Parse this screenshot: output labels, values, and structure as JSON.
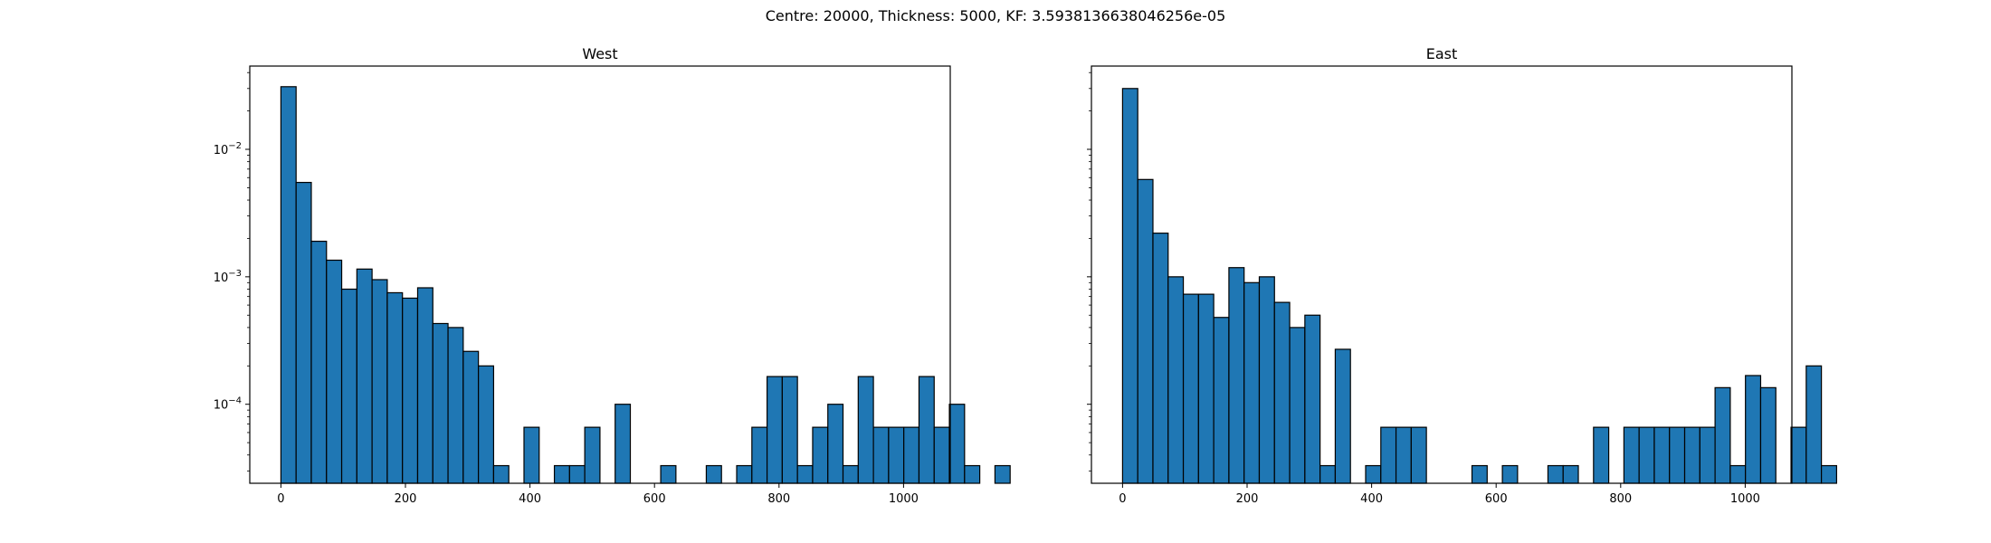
{
  "figure": {
    "suptitle": "Centre: 20000, Thickness: 5000, KF: 3.5938136638046256e-05"
  },
  "style": {
    "bar_color": "#1f77b4",
    "edge_color": "#000000"
  },
  "chart_data": [
    {
      "type": "bar",
      "title": "West",
      "xlabel": "",
      "ylabel": "",
      "bin_width": 24.4,
      "xlim": [
        -50,
        1075
      ],
      "ylim": [
        2.4e-05,
        0.045
      ],
      "yscale": "log",
      "xticks": [
        0,
        200,
        400,
        600,
        800,
        1000
      ],
      "yticks": [
        0.0001,
        0.001,
        0.01
      ],
      "ytick_labels": [
        {
          "base": "10",
          "exp": "−4"
        },
        {
          "base": "10",
          "exp": "−3"
        },
        {
          "base": "10",
          "exp": "−2"
        }
      ],
      "grid": false,
      "bins": [
        {
          "x": 0,
          "value": 0.031
        },
        {
          "x": 24.4,
          "value": 0.0055
        },
        {
          "x": 48.8,
          "value": 0.0019
        },
        {
          "x": 73.2,
          "value": 0.00135
        },
        {
          "x": 97.6,
          "value": 0.0008
        },
        {
          "x": 122,
          "value": 0.00115
        },
        {
          "x": 146.4,
          "value": 0.00095
        },
        {
          "x": 170.8,
          "value": 0.00075
        },
        {
          "x": 195.2,
          "value": 0.00068
        },
        {
          "x": 219.6,
          "value": 0.00082
        },
        {
          "x": 244,
          "value": 0.00043
        },
        {
          "x": 268.4,
          "value": 0.0004
        },
        {
          "x": 292.8,
          "value": 0.00026
        },
        {
          "x": 317.2,
          "value": 0.0002
        },
        {
          "x": 341.6,
          "value": 3.3e-05
        },
        {
          "x": 390.4,
          "value": 6.6e-05
        },
        {
          "x": 439.2,
          "value": 3.3e-05
        },
        {
          "x": 463.6,
          "value": 3.3e-05
        },
        {
          "x": 488,
          "value": 6.6e-05
        },
        {
          "x": 536.8,
          "value": 0.0001
        },
        {
          "x": 610,
          "value": 3.3e-05
        },
        {
          "x": 683.2,
          "value": 3.3e-05
        },
        {
          "x": 732,
          "value": 3.3e-05
        },
        {
          "x": 756.4,
          "value": 6.6e-05
        },
        {
          "x": 780.8,
          "value": 0.000165
        },
        {
          "x": 805.2,
          "value": 0.000165
        },
        {
          "x": 829.6,
          "value": 3.3e-05
        },
        {
          "x": 854,
          "value": 6.6e-05
        },
        {
          "x": 878.4,
          "value": 0.0001
        },
        {
          "x": 902.8,
          "value": 3.3e-05
        },
        {
          "x": 927.2,
          "value": 0.000165
        },
        {
          "x": 951.6,
          "value": 6.6e-05
        },
        {
          "x": 976,
          "value": 6.6e-05
        },
        {
          "x": 1000.4,
          "value": 6.6e-05
        },
        {
          "x": 1024.8,
          "value": 0.000165
        },
        {
          "x": 1049.2,
          "value": 6.6e-05
        },
        {
          "x": 1073.6,
          "value": 0.0001
        },
        {
          "x": 1098,
          "value": 3.3e-05
        },
        {
          "x": 1146.8,
          "value": 3.3e-05
        }
      ]
    },
    {
      "type": "bar",
      "title": "East",
      "xlabel": "",
      "ylabel": "",
      "bin_width": 24.4,
      "xlim": [
        -50,
        1075
      ],
      "ylim": [
        2.4e-05,
        0.045
      ],
      "yscale": "log",
      "xticks": [
        0,
        200,
        400,
        600,
        800,
        1000
      ],
      "yticks": [
        0.0001,
        0.001,
        0.01
      ],
      "ytick_labels": [],
      "grid": false,
      "bins": [
        {
          "x": 0,
          "value": 0.03
        },
        {
          "x": 24.4,
          "value": 0.0058
        },
        {
          "x": 48.8,
          "value": 0.0022
        },
        {
          "x": 73.2,
          "value": 0.001
        },
        {
          "x": 97.6,
          "value": 0.00073
        },
        {
          "x": 122,
          "value": 0.00073
        },
        {
          "x": 146.4,
          "value": 0.00048
        },
        {
          "x": 170.8,
          "value": 0.00118
        },
        {
          "x": 195.2,
          "value": 0.0009
        },
        {
          "x": 219.6,
          "value": 0.001
        },
        {
          "x": 244,
          "value": 0.00063
        },
        {
          "x": 268.4,
          "value": 0.0004
        },
        {
          "x": 292.8,
          "value": 0.0005
        },
        {
          "x": 317.2,
          "value": 3.3e-05
        },
        {
          "x": 341.6,
          "value": 0.00027
        },
        {
          "x": 390.4,
          "value": 3.3e-05
        },
        {
          "x": 414.8,
          "value": 6.6e-05
        },
        {
          "x": 439.2,
          "value": 6.6e-05
        },
        {
          "x": 463.6,
          "value": 6.6e-05
        },
        {
          "x": 561.2,
          "value": 3.3e-05
        },
        {
          "x": 610,
          "value": 3.3e-05
        },
        {
          "x": 683.2,
          "value": 3.3e-05
        },
        {
          "x": 707.6,
          "value": 3.3e-05
        },
        {
          "x": 756.4,
          "value": 6.6e-05
        },
        {
          "x": 805.2,
          "value": 6.6e-05
        },
        {
          "x": 829.6,
          "value": 6.6e-05
        },
        {
          "x": 854,
          "value": 6.6e-05
        },
        {
          "x": 878.4,
          "value": 6.6e-05
        },
        {
          "x": 902.8,
          "value": 6.6e-05
        },
        {
          "x": 927.2,
          "value": 6.6e-05
        },
        {
          "x": 951.6,
          "value": 0.000135
        },
        {
          "x": 976,
          "value": 3.3e-05
        },
        {
          "x": 1000.4,
          "value": 0.000168
        },
        {
          "x": 1024.8,
          "value": 0.000135
        },
        {
          "x": 1073.6,
          "value": 6.6e-05
        },
        {
          "x": 1098,
          "value": 0.0002
        },
        {
          "x": 1122.4,
          "value": 3.3e-05
        }
      ]
    }
  ]
}
